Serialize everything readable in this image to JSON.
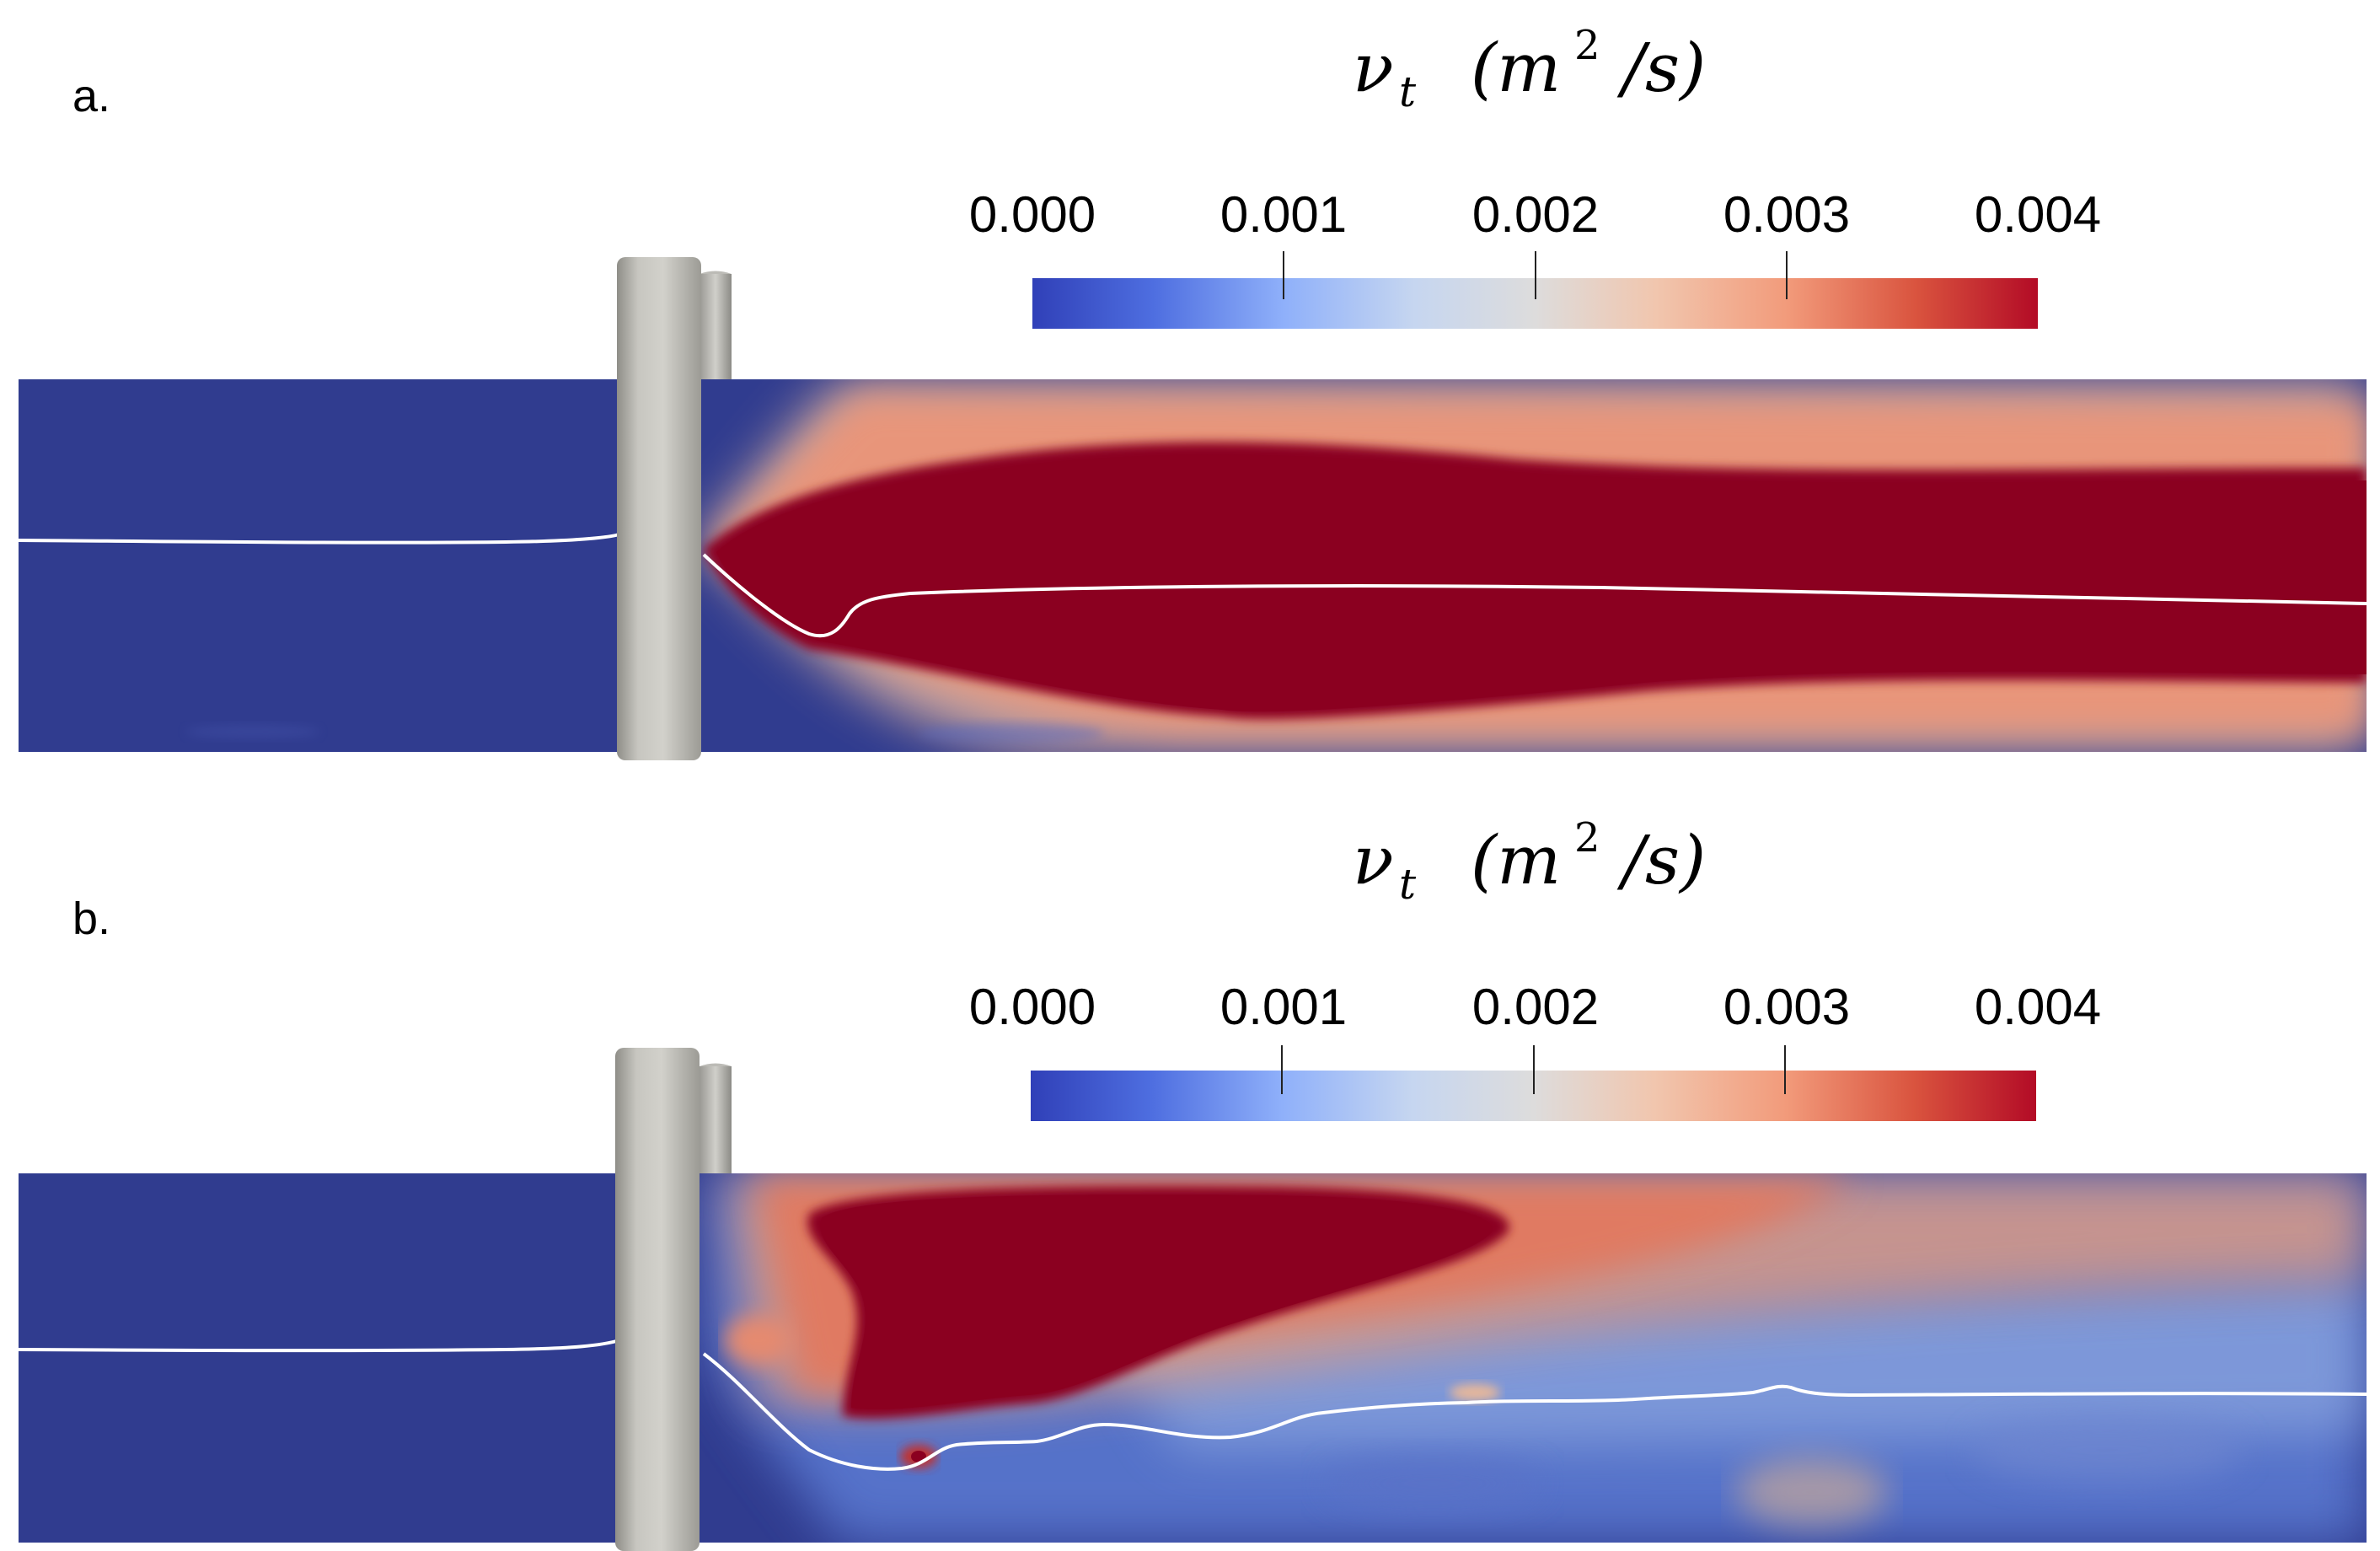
{
  "panels": [
    {
      "label": "a.",
      "colorbar": {
        "title_symbol": "ν",
        "title_subscript": "t",
        "title_unit_base": "(m",
        "title_unit_exp": "2",
        "title_unit_rest": "/s)",
        "ticks": [
          "0.000",
          "0.001",
          "0.002",
          "0.003",
          "0.004"
        ],
        "range": [
          0.0,
          0.004
        ]
      }
    },
    {
      "label": "b.",
      "colorbar": {
        "title_symbol": "ν",
        "title_subscript": "t",
        "title_unit_base": "(m",
        "title_unit_exp": "2",
        "title_unit_rest": "/s)",
        "ticks": [
          "0.000",
          "0.001",
          "0.002",
          "0.003",
          "0.004"
        ],
        "range": [
          0.0,
          0.004
        ]
      }
    }
  ],
  "colormap": {
    "name": "coolwarm",
    "low": "#3b4cc0",
    "mid": "#dddddd",
    "high": "#b40426",
    "saturated": "#8b0020",
    "background_field": "#303c8f"
  },
  "structure_color": "#c4c3bd",
  "free_surface_color": "#ffffff"
}
